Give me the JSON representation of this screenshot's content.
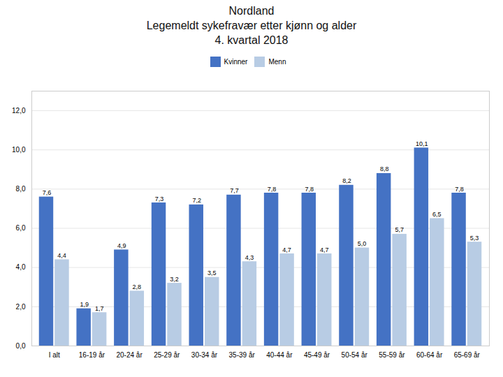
{
  "chart_data": {
    "type": "bar",
    "title": "Nordland\nLegemeldt sykefravær etter kjønn og alder\n4. kvartal 2018",
    "categories": [
      "I alt",
      "16-19 år",
      "20-24 år",
      "25-29 år",
      "30-34 år",
      "35-39 år",
      "40-44 år",
      "45-49 år",
      "50-54 år",
      "55-59 år",
      "60-64 år",
      "65-69 år"
    ],
    "series": [
      {
        "name": "Kvinner",
        "color": "#4472C4",
        "values": [
          7.6,
          1.9,
          4.9,
          7.3,
          7.2,
          7.7,
          7.8,
          7.8,
          8.2,
          8.8,
          10.1,
          7.8
        ],
        "value_labels": [
          "7,6",
          "1,9",
          "4,9",
          "7,3",
          "7,2",
          "7,7",
          "7,8",
          "7,8",
          "8,2",
          "8,8",
          "10,1",
          "7,8"
        ]
      },
      {
        "name": "Menn",
        "color": "#B8CCE4",
        "values": [
          4.4,
          1.7,
          2.8,
          3.2,
          3.5,
          4.3,
          4.7,
          4.7,
          5.0,
          5.7,
          6.5,
          5.3
        ],
        "value_labels": [
          "4,4",
          "1,7",
          "2,8",
          "3,2",
          "3,5",
          "4,3",
          "4,7",
          "4,7",
          "5,0",
          "5,7",
          "6,5",
          "5,3"
        ]
      }
    ],
    "ylim": [
      0,
      13
    ],
    "yticks": [
      {
        "value": 0,
        "label": "0,0"
      },
      {
        "value": 2,
        "label": "2,0"
      },
      {
        "value": 4,
        "label": "4,0"
      },
      {
        "value": 6,
        "label": "6,0"
      },
      {
        "value": 8,
        "label": "8,0"
      },
      {
        "value": 10,
        "label": "10,0"
      },
      {
        "value": 12,
        "label": "12,0"
      }
    ],
    "grid": true,
    "legend": "top",
    "data_labels": true
  }
}
